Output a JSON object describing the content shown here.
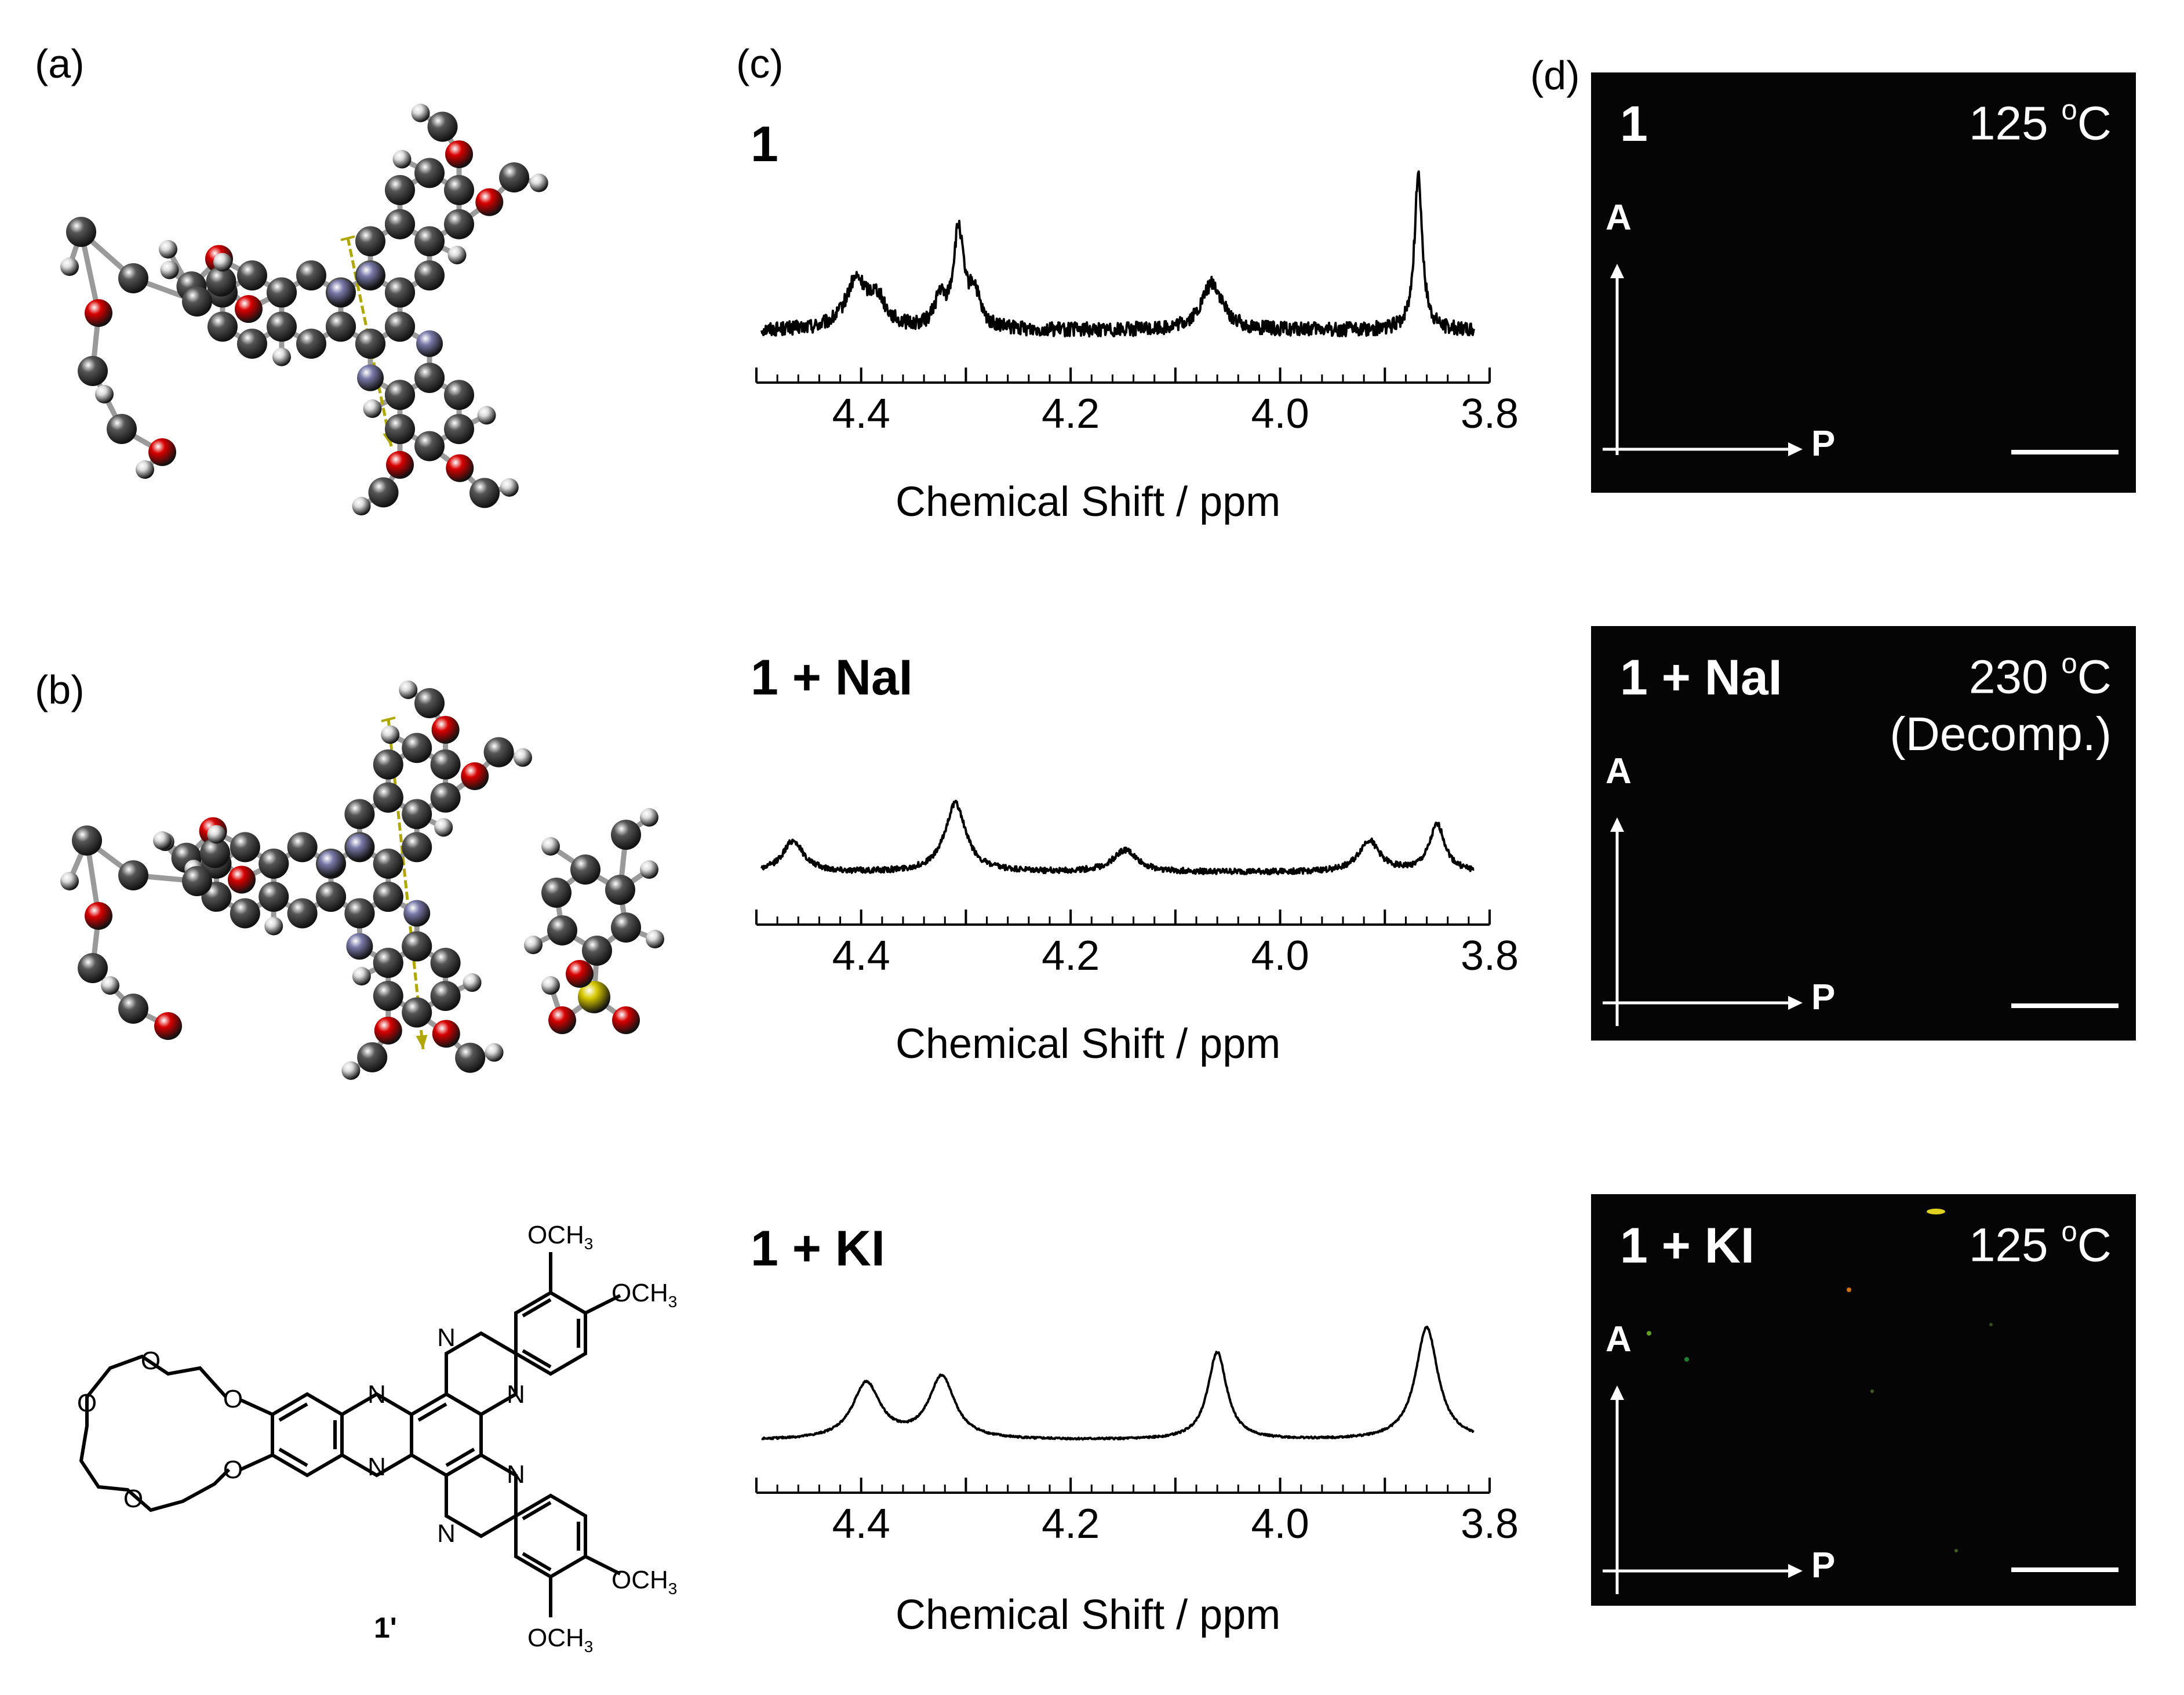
{
  "panels": {
    "a": "(a)",
    "b": "(b)",
    "c": "(c)",
    "d": "(d)"
  },
  "colors": {
    "carbon": "#555555",
    "oxygen": "#d80000",
    "nitrogen": "#7878a8",
    "hydrogen": "#dcdcdc",
    "sulfur": "#d6c800",
    "dipole": "#b0a800",
    "spectrum": "#000000",
    "pom_background": "#050505"
  },
  "structure": {
    "label": "1'",
    "och3": "OCH",
    "sub3": "3",
    "o": "O",
    "n": "N"
  },
  "chart_data": [
    {
      "type": "line",
      "title": "1",
      "xlabel": "Chemical Shift / ppm",
      "ylabel": "",
      "xlim": [
        4.5,
        3.8
      ],
      "tick_labels": [
        "4.4",
        "4.2",
        "4.0",
        "3.8"
      ],
      "peaks": [
        {
          "x": 4.405,
          "height": 0.3,
          "width": 0.012
        },
        {
          "x": 4.385,
          "height": 0.18,
          "width": 0.01
        },
        {
          "x": 4.325,
          "height": 0.18,
          "width": 0.006
        },
        {
          "x": 4.307,
          "height": 0.62,
          "width": 0.006
        },
        {
          "x": 4.292,
          "height": 0.22,
          "width": 0.006
        },
        {
          "x": 4.065,
          "height": 0.3,
          "width": 0.012
        },
        {
          "x": 3.868,
          "height": 1.0,
          "width": 0.0045
        }
      ],
      "noise": 0.045
    },
    {
      "type": "line",
      "title": "1 + NaI",
      "xlabel": "Chemical Shift / ppm",
      "ylabel": "",
      "xlim": [
        4.5,
        3.8
      ],
      "tick_labels": [
        "4.4",
        "4.2",
        "4.0",
        "3.8"
      ],
      "peaks": [
        {
          "x": 4.465,
          "height": 0.2,
          "width": 0.012
        },
        {
          "x": 4.31,
          "height": 0.44,
          "width": 0.012
        },
        {
          "x": 4.148,
          "height": 0.14,
          "width": 0.014
        },
        {
          "x": 3.915,
          "height": 0.2,
          "width": 0.012
        },
        {
          "x": 3.85,
          "height": 0.3,
          "width": 0.009
        }
      ],
      "noise": 0.018
    },
    {
      "type": "line",
      "title": "1 + KI",
      "xlabel": "Chemical Shift / ppm",
      "ylabel": "",
      "xlim": [
        4.5,
        3.8
      ],
      "tick_labels": [
        "4.4",
        "4.2",
        "4.0",
        "3.8"
      ],
      "peaks": [
        {
          "x": 4.395,
          "height": 0.36,
          "width": 0.016
        },
        {
          "x": 4.323,
          "height": 0.4,
          "width": 0.015
        },
        {
          "x": 4.06,
          "height": 0.56,
          "width": 0.011
        },
        {
          "x": 3.86,
          "height": 0.72,
          "width": 0.013
        }
      ],
      "noise": 0.006
    }
  ],
  "pom": [
    {
      "sample": "1",
      "temp_value": "125 ",
      "temp_sup": "o",
      "temp_unit": "C",
      "note": "",
      "axis_a": "A",
      "axis_p": "P"
    },
    {
      "sample": "1 + NaI",
      "temp_value": "230 ",
      "temp_sup": "o",
      "temp_unit": "C",
      "note": "(Decomp.)",
      "axis_a": "A",
      "axis_p": "P"
    },
    {
      "sample": "1 + KI",
      "temp_value": "125 ",
      "temp_sup": "o",
      "temp_unit": "C",
      "note": "",
      "axis_a": "A",
      "axis_p": "P"
    }
  ]
}
